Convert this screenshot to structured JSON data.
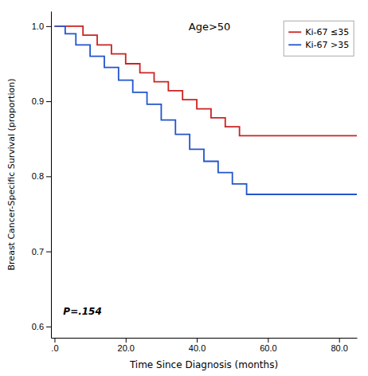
{
  "chart_data": {
    "type": "step",
    "title": "Age>50",
    "xlabel": "Time Since Diagnosis (months)",
    "ylabel": "Breast Cancer-Specific Survival (proportion)",
    "annotation": "P=.154",
    "xlim": [
      -1,
      85
    ],
    "ylim": [
      0.585,
      1.02
    ],
    "xticks": [
      {
        "value": 0,
        "label": ".0"
      },
      {
        "value": 20,
        "label": "20.0"
      },
      {
        "value": 40,
        "label": "40.0"
      },
      {
        "value": 60,
        "label": "60.0"
      },
      {
        "value": 80,
        "label": "80.0"
      }
    ],
    "yticks": [
      0.6,
      0.7,
      0.8,
      0.9,
      {
        "value": 1.0,
        "label": "1.0"
      }
    ],
    "grid": false,
    "legend": "upper right",
    "series": [
      {
        "name": "Ki-67 ≤35",
        "color": "#cc2222",
        "x": [
          0,
          5,
          8,
          12,
          16,
          20,
          24,
          28,
          32,
          36,
          40,
          44,
          48,
          52,
          85
        ],
        "values": [
          1.0,
          1.0,
          0.988,
          0.975,
          0.963,
          0.95,
          0.938,
          0.926,
          0.914,
          0.902,
          0.89,
          0.878,
          0.866,
          0.854,
          0.854
        ]
      },
      {
        "name": "Ki-67 >35",
        "color": "#2255cc",
        "x": [
          0,
          3,
          6,
          10,
          14,
          18,
          22,
          26,
          30,
          34,
          38,
          42,
          46,
          50,
          54,
          85
        ],
        "values": [
          1.0,
          0.99,
          0.975,
          0.96,
          0.945,
          0.928,
          0.912,
          0.896,
          0.875,
          0.856,
          0.836,
          0.82,
          0.805,
          0.79,
          0.776,
          0.776
        ]
      }
    ]
  }
}
